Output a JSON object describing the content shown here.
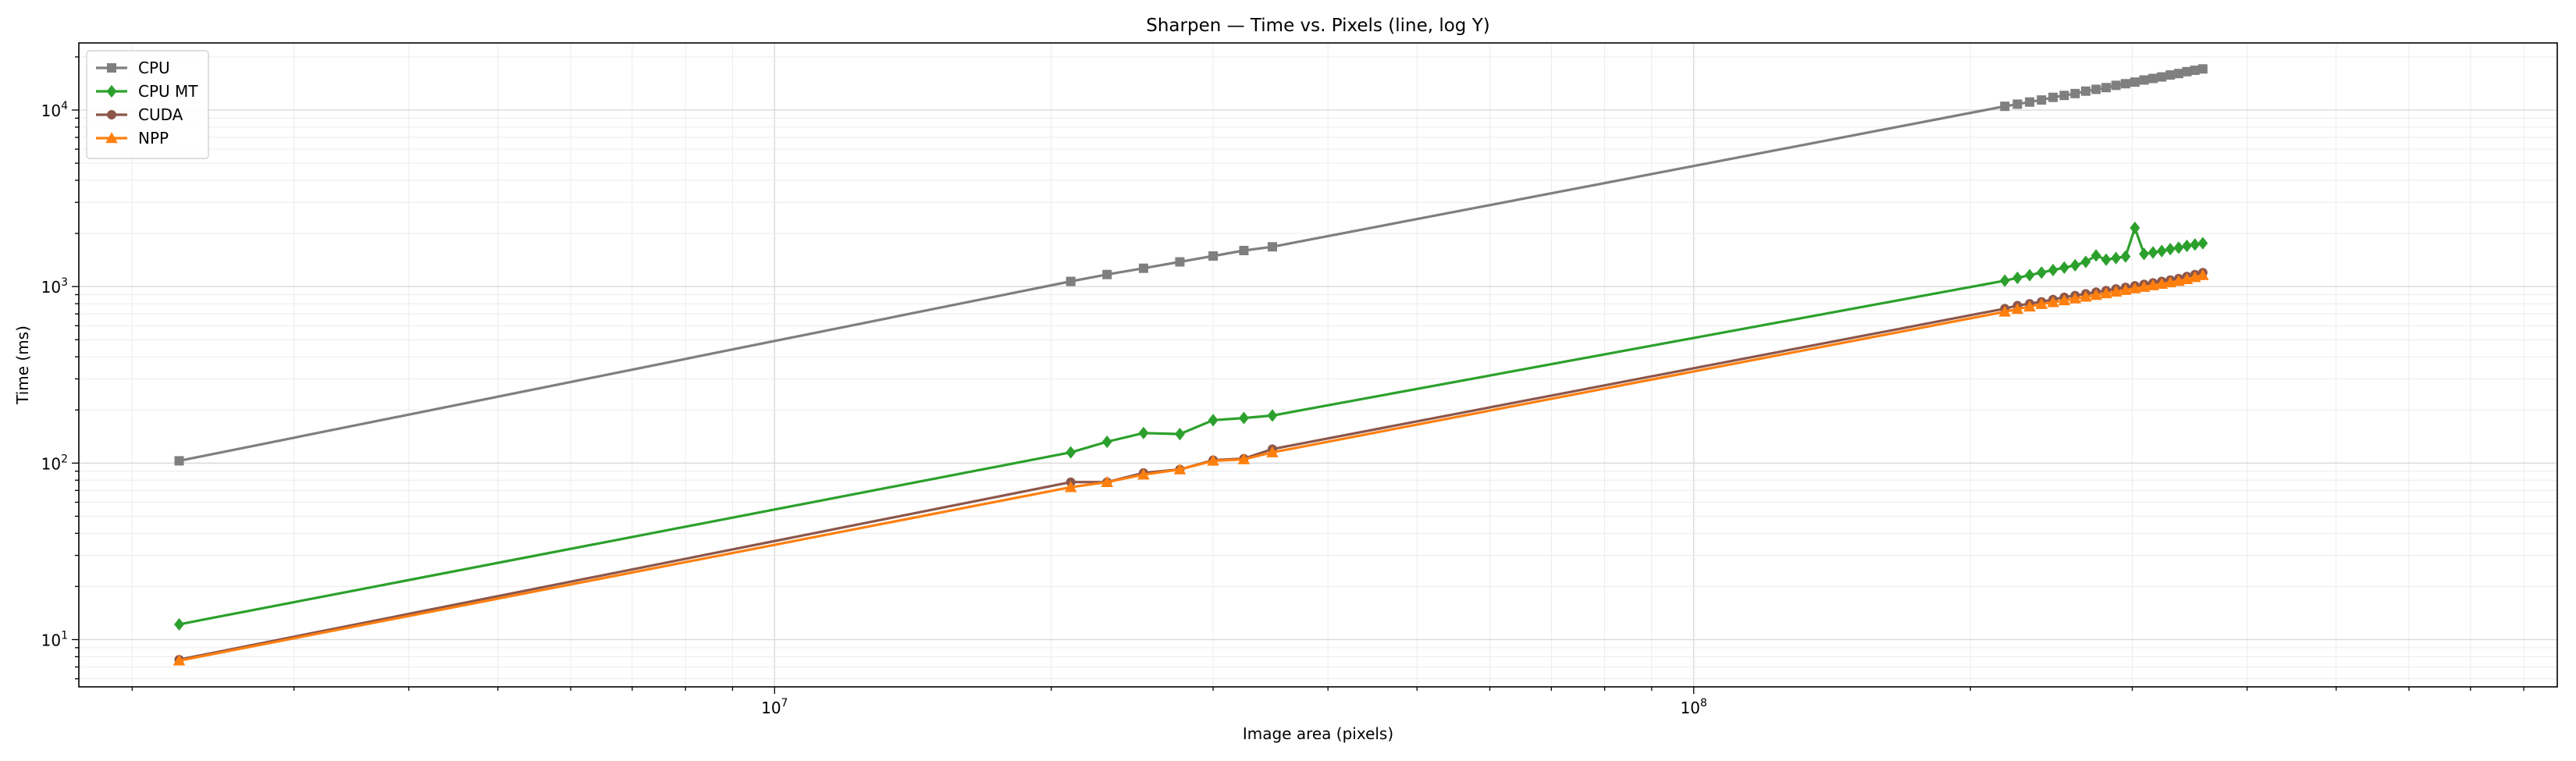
{
  "chart_data": {
    "type": "line",
    "title": "Sharpen — Time vs. Pixels (line, log Y)",
    "xlabel": "Image area (pixels)",
    "ylabel": "Time (ms)",
    "xscale": "log",
    "yscale": "log",
    "xlim": [
      1750000,
      870000000
    ],
    "ylim": [
      5.4,
      24000
    ],
    "grid": true,
    "legend_position": "top-left",
    "x_ticks": [
      {
        "value": 10000000,
        "base": "10",
        "exp": "7"
      },
      {
        "value": 100000000,
        "base": "10",
        "exp": "8"
      }
    ],
    "y_ticks": [
      {
        "value": 10,
        "base": "10",
        "exp": "1"
      },
      {
        "value": 100,
        "base": "10",
        "exp": "2"
      },
      {
        "value": 1000,
        "base": "10",
        "exp": "3"
      },
      {
        "value": 10000,
        "base": "10",
        "exp": "4"
      }
    ],
    "series": [
      {
        "name": "CPU",
        "color": "#7f7f7f",
        "marker": "square",
        "x": [
          2250000,
          21000000,
          23000000,
          25200000,
          27600000,
          30000000,
          32400000,
          34800000,
          218000000,
          225000000,
          232000000,
          239000000,
          246000000,
          253000000,
          260000000,
          267000000,
          274000000,
          281000000,
          288000000,
          295000000,
          302000000,
          309000000,
          316000000,
          323000000,
          330000000,
          337000000,
          344000000,
          351000000,
          358000000
        ],
        "y": [
          103,
          1070,
          1170,
          1270,
          1380,
          1490,
          1600,
          1680,
          10500,
          10800,
          11100,
          11400,
          11800,
          12100,
          12400,
          12800,
          13100,
          13400,
          13800,
          14100,
          14400,
          14800,
          15100,
          15400,
          15800,
          16100,
          16500,
          16800,
          17100
        ]
      },
      {
        "name": "CPU MT",
        "color": "#2ca02c",
        "marker": "diamond",
        "x": [
          2250000,
          21000000,
          23000000,
          25200000,
          27600000,
          30000000,
          32400000,
          34800000,
          218000000,
          225000000,
          232000000,
          239000000,
          246000000,
          253000000,
          260000000,
          267000000,
          274000000,
          281000000,
          288000000,
          295000000,
          302000000,
          309000000,
          316000000,
          323000000,
          330000000,
          337000000,
          344000000,
          351000000,
          358000000
        ],
        "y": [
          12.2,
          115,
          132,
          148,
          146,
          175,
          180,
          186,
          1080,
          1120,
          1160,
          1200,
          1240,
          1280,
          1320,
          1380,
          1500,
          1420,
          1450,
          1480,
          2150,
          1530,
          1560,
          1590,
          1630,
          1660,
          1700,
          1730,
          1760
        ]
      },
      {
        "name": "CUDA",
        "color": "#8c564b",
        "marker": "circle",
        "x": [
          2250000,
          21000000,
          23000000,
          25200000,
          27600000,
          30000000,
          32400000,
          34800000,
          218000000,
          225000000,
          232000000,
          239000000,
          246000000,
          253000000,
          260000000,
          267000000,
          274000000,
          281000000,
          288000000,
          295000000,
          302000000,
          309000000,
          316000000,
          323000000,
          330000000,
          337000000,
          344000000,
          351000000,
          358000000
        ],
        "y": [
          7.7,
          78,
          78,
          88,
          92,
          104,
          106,
          120,
          750,
          780,
          800,
          820,
          845,
          870,
          890,
          910,
          930,
          950,
          970,
          990,
          1010,
          1030,
          1050,
          1070,
          1090,
          1110,
          1140,
          1170,
          1200
        ]
      },
      {
        "name": "NPP",
        "color": "#ff7f0e",
        "marker": "triangle",
        "x": [
          2250000,
          21000000,
          23000000,
          25200000,
          27600000,
          30000000,
          32400000,
          34800000,
          218000000,
          225000000,
          232000000,
          239000000,
          246000000,
          253000000,
          260000000,
          267000000,
          274000000,
          281000000,
          288000000,
          295000000,
          302000000,
          309000000,
          316000000,
          323000000,
          330000000,
          337000000,
          344000000,
          351000000,
          358000000
        ],
        "y": [
          7.6,
          73,
          78,
          86,
          92,
          103,
          105,
          115,
          720,
          745,
          770,
          795,
          815,
          835,
          855,
          875,
          895,
          915,
          935,
          955,
          975,
          995,
          1015,
          1035,
          1055,
          1075,
          1100,
          1130,
          1160
        ]
      }
    ]
  }
}
